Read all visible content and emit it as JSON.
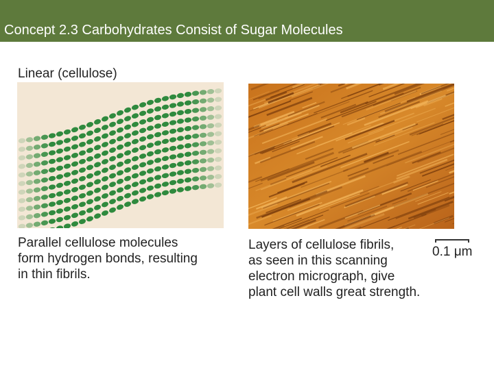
{
  "header": {
    "title": "Concept 2.3 Carbohydrates Consist of Sugar Molecules"
  },
  "left": {
    "label": "Linear (cellulose)",
    "caption": [
      "Parallel cellulose molecules",
      "form hydrogen bonds, resulting",
      "in thin fibrils."
    ]
  },
  "right": {
    "caption": [
      "Layers of cellulose fibrils,",
      "as seen in this scanning",
      "electron micrograph, give",
      "plant cell walls great strength."
    ],
    "scale_bar": "0.1 μm"
  }
}
